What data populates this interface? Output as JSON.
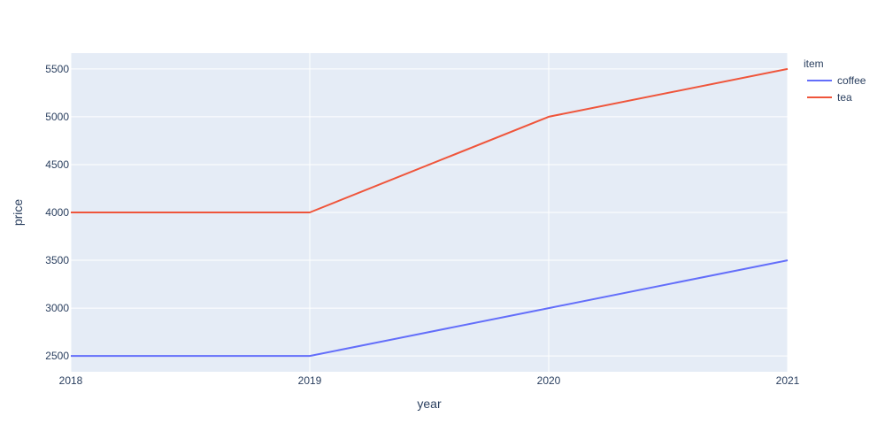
{
  "chart_data": {
    "type": "line",
    "title": "",
    "xlabel": "year",
    "ylabel": "price",
    "x": [
      2018,
      2019,
      2020,
      2021
    ],
    "xticks": [
      "2018",
      "2019",
      "2020",
      "2021"
    ],
    "xlim": [
      2018,
      2021
    ],
    "yticks": [
      2500,
      3000,
      3500,
      4000,
      4500,
      5000,
      5500
    ],
    "ylim": [
      2335,
      5665
    ],
    "grid": true,
    "legend": {
      "title": "item",
      "placement": "top-right, outside plot"
    },
    "series": [
      {
        "name": "coffee",
        "color": "#636efa",
        "values": [
          2500,
          2500,
          3000,
          3500
        ]
      },
      {
        "name": "tea",
        "color": "#ef553b",
        "values": [
          4000,
          4000,
          5000,
          5500
        ]
      }
    ],
    "colors": {
      "plot_bg": "#e5ecf6",
      "grid": "#ffffff",
      "text": "#2a3f5f"
    }
  }
}
